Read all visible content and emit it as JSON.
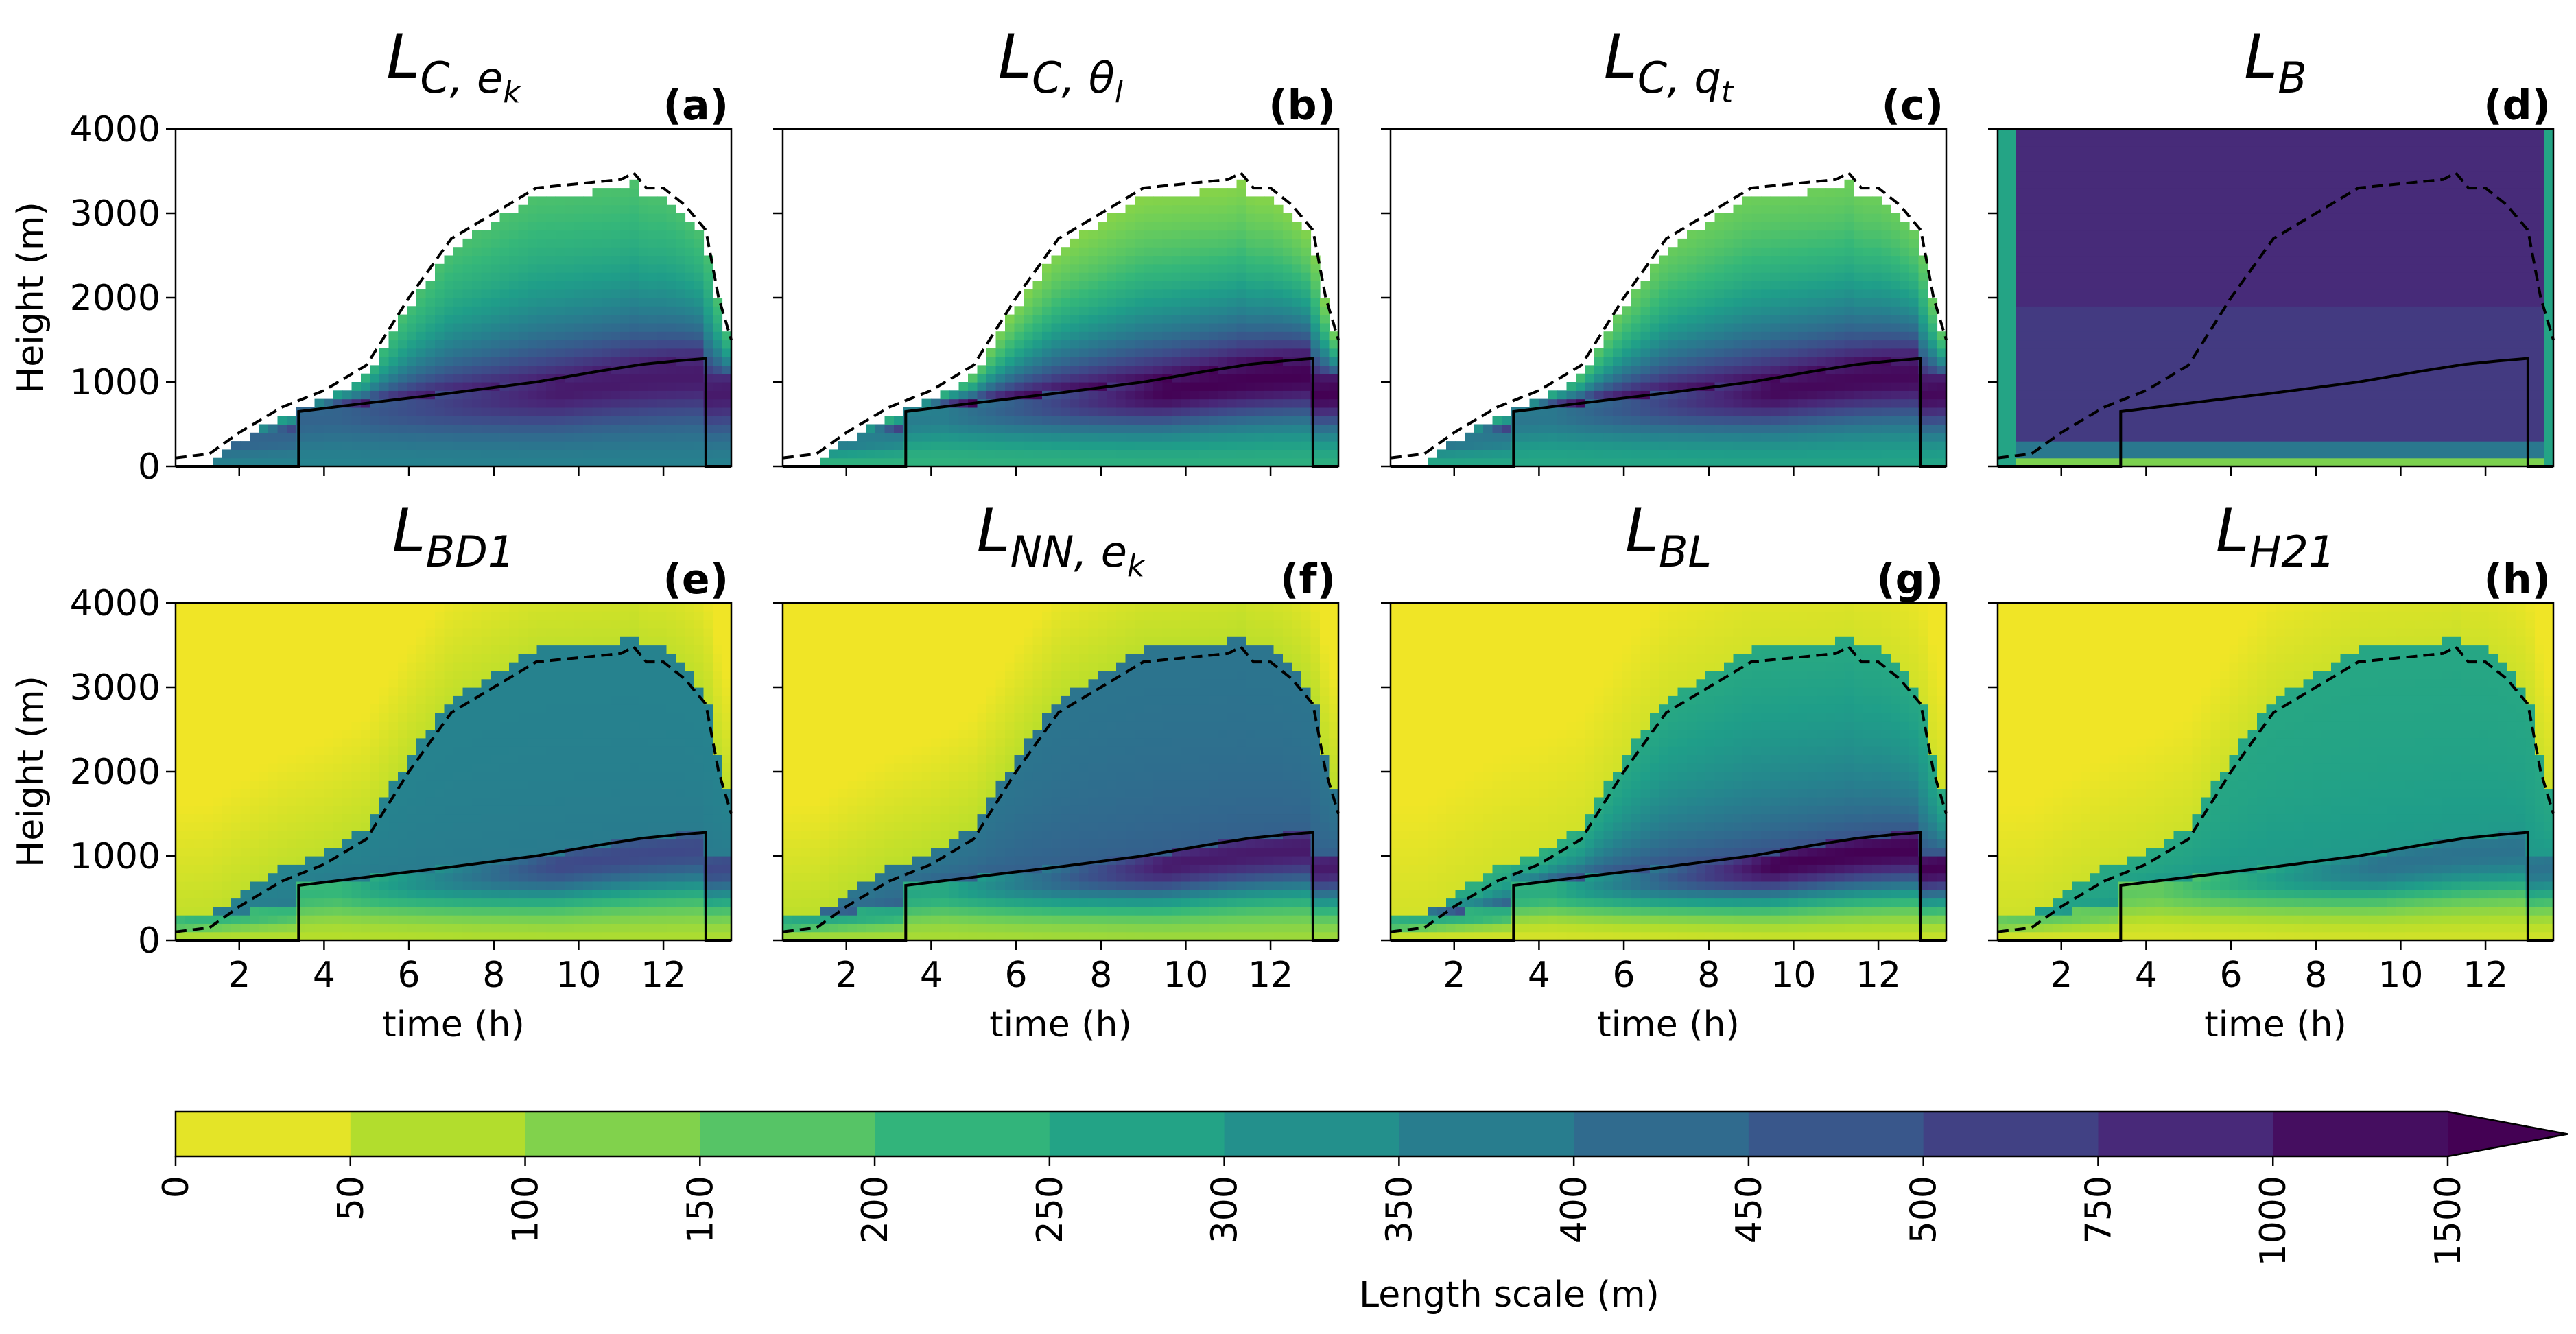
{
  "chart_data": {
    "type": "heatmap",
    "xlabel": "time (h)",
    "ylabel": "Height (m)",
    "xlim": [
      0.5,
      13.6
    ],
    "ylim": [
      0,
      4000
    ],
    "xticks": [
      "2",
      "4",
      "6",
      "8",
      "10",
      "12"
    ],
    "xtick_values": [
      2,
      4,
      6,
      8,
      10,
      12
    ],
    "yticks": [
      "0",
      "1000",
      "2000",
      "3000",
      "4000"
    ],
    "ytick_values": [
      0,
      1000,
      2000,
      3000,
      4000
    ],
    "panels": [
      {
        "letter": "(a)",
        "name": "L",
        "sub": "C, e",
        "subsub": "k",
        "style": "cloud",
        "core": 0.93,
        "top": 0.2,
        "surface": 0.55
      },
      {
        "letter": "(b)",
        "name": "L",
        "sub": "C, θ",
        "subsub": "l",
        "style": "cloud",
        "core": 1.0,
        "top": 0.07,
        "surface": 0.35
      },
      {
        "letter": "(c)",
        "name": "L",
        "sub": "C, q",
        "subsub": "t",
        "style": "cloud",
        "core": 0.98,
        "top": 0.12,
        "surface": 0.4
      },
      {
        "letter": "(d)",
        "name": "L",
        "sub": "B",
        "subsub": "",
        "style": "constant",
        "core": 0.88,
        "top": 0.88,
        "surface": 0.1
      },
      {
        "letter": "(e)",
        "name": "L",
        "sub": "BD1",
        "subsub": "",
        "style": "full",
        "core": 0.78,
        "top": 0.55,
        "surface": 0.1
      },
      {
        "letter": "(f)",
        "name": "L",
        "sub": "NN, e",
        "subsub": "k",
        "style": "full",
        "core": 0.93,
        "top": 0.6,
        "surface": 0.12
      },
      {
        "letter": "(g)",
        "name": "L",
        "sub": "BL",
        "subsub": "",
        "style": "full",
        "core": 1.0,
        "top": 0.35,
        "surface": 0.05
      },
      {
        "letter": "(h)",
        "name": "L",
        "sub": "H21",
        "subsub": "",
        "style": "full",
        "core": 0.62,
        "top": 0.4,
        "surface": 0.05
      }
    ],
    "boundary_layer_height_m": {
      "time_h": [
        0.5,
        3.4,
        3.4,
        5,
        7,
        9,
        10.5,
        11.5,
        12.3,
        13.0,
        13.0,
        13.6
      ],
      "height_m": [
        0,
        0,
        650,
        750,
        870,
        1000,
        1130,
        1210,
        1250,
        1280,
        0,
        0
      ]
    },
    "cloud_top_height_m": {
      "time_h": [
        0.5,
        1.3,
        2.0,
        3.0,
        4.0,
        5.0,
        6.0,
        7.0,
        8.0,
        9.0,
        10.0,
        11.0,
        11.3,
        11.6,
        12.0,
        12.5,
        13.0,
        13.3,
        13.6
      ],
      "height_m": [
        100,
        150,
        400,
        700,
        900,
        1200,
        2000,
        2700,
        3000,
        3300,
        3350,
        3400,
        3480,
        3300,
        3300,
        3100,
        2800,
        2000,
        1500
      ]
    },
    "colorbar": {
      "label": "Length scale (m)",
      "ticks": [
        "0",
        "50",
        "100",
        "150",
        "200",
        "250",
        "300",
        "350",
        "400",
        "450",
        "500",
        "750",
        "1000",
        "1500"
      ],
      "extend": "max",
      "colormap": "viridis (reversed)"
    },
    "colors": {
      "low": "#fde725",
      "mid": "#21918c",
      "high": "#440154",
      "contour": "#000000"
    }
  }
}
